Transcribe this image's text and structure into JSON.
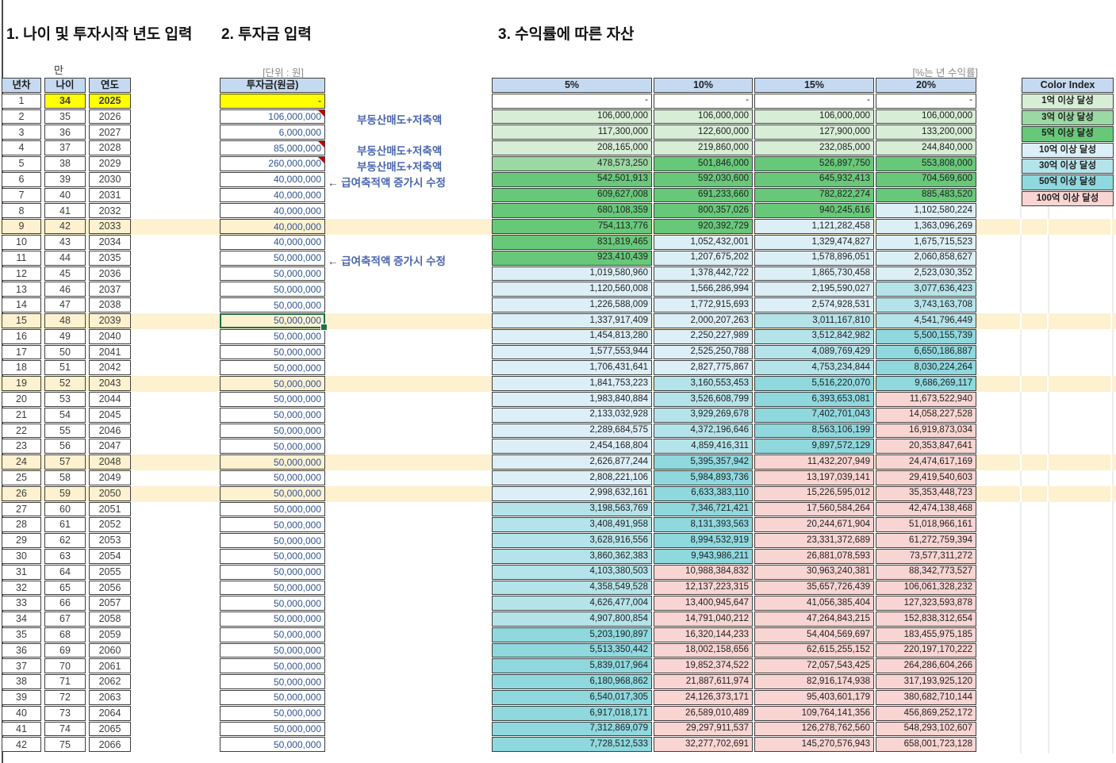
{
  "titles": {
    "section1": "1. 나이 및 투자시작 년도 입력",
    "section2": "2. 투자금 입력",
    "section3": "3. 수익률에 따른 자산"
  },
  "labels": {
    "man": "만",
    "unit": "[단위 : 원]",
    "rate": "[%는 년 수익률]"
  },
  "left_table": {
    "headers": [
      "년차",
      "나이",
      "연도"
    ],
    "rows": [
      [
        1,
        34,
        2025
      ],
      [
        2,
        35,
        2026
      ],
      [
        3,
        36,
        2027
      ],
      [
        4,
        37,
        2028
      ],
      [
        5,
        38,
        2029
      ],
      [
        6,
        39,
        2030
      ],
      [
        7,
        40,
        2031
      ],
      [
        8,
        41,
        2032
      ],
      [
        9,
        42,
        2033
      ],
      [
        10,
        43,
        2034
      ],
      [
        11,
        44,
        2035
      ],
      [
        12,
        45,
        2036
      ],
      [
        13,
        46,
        2037
      ],
      [
        14,
        47,
        2038
      ],
      [
        15,
        48,
        2039
      ],
      [
        16,
        49,
        2040
      ],
      [
        17,
        50,
        2041
      ],
      [
        18,
        51,
        2042
      ],
      [
        19,
        52,
        2043
      ],
      [
        20,
        53,
        2044
      ],
      [
        21,
        54,
        2045
      ],
      [
        22,
        55,
        2046
      ],
      [
        23,
        56,
        2047
      ],
      [
        24,
        57,
        2048
      ],
      [
        25,
        58,
        2049
      ],
      [
        26,
        59,
        2050
      ],
      [
        27,
        60,
        2051
      ],
      [
        28,
        61,
        2052
      ],
      [
        29,
        62,
        2053
      ],
      [
        30,
        63,
        2054
      ],
      [
        31,
        64,
        2055
      ],
      [
        32,
        65,
        2056
      ],
      [
        33,
        66,
        2057
      ],
      [
        34,
        67,
        2058
      ],
      [
        35,
        68,
        2059
      ],
      [
        36,
        69,
        2060
      ],
      [
        37,
        70,
        2061
      ],
      [
        38,
        71,
        2062
      ],
      [
        39,
        72,
        2063
      ],
      [
        40,
        73,
        2064
      ],
      [
        41,
        74,
        2065
      ],
      [
        42,
        75,
        2066
      ]
    ]
  },
  "investment_table": {
    "header": "투자금(원금)",
    "values": [
      "-",
      "106,000,000",
      "6,000,000",
      "85,000,000",
      "260,000,000",
      "40,000,000",
      "40,000,000",
      "40,000,000",
      "40,000,000",
      "40,000,000",
      "50,000,000",
      "50,000,000",
      "50,000,000",
      "50,000,000",
      "50,000,000",
      "50,000,000",
      "50,000,000",
      "50,000,000",
      "50,000,000",
      "50,000,000",
      "50,000,000",
      "50,000,000",
      "50,000,000",
      "50,000,000",
      "50,000,000",
      "50,000,000",
      "50,000,000",
      "50,000,000",
      "50,000,000",
      "50,000,000",
      "50,000,000",
      "50,000,000",
      "50,000,000",
      "50,000,000",
      "50,000,000",
      "50,000,000",
      "50,000,000",
      "50,000,000",
      "50,000,000",
      "50,000,000",
      "50,000,000",
      "50,000,000"
    ],
    "comment_rows": [
      2,
      4,
      5
    ]
  },
  "annotations": [
    {
      "row": 2,
      "arrow": "",
      "text": "부동산매도+저축액"
    },
    {
      "row": 4,
      "arrow": "",
      "text": "부동산매도+저축액"
    },
    {
      "row": 5,
      "arrow": "",
      "text": "부동산매도+저축액"
    },
    {
      "row": 6,
      "arrow": "←",
      "text": "급여축적액 증가시 수정"
    },
    {
      "row": 11,
      "arrow": "←",
      "text": "급여축적액 증가시 수정"
    }
  ],
  "asset_table": {
    "headers": [
      "5%",
      "10%",
      "15%",
      "20%"
    ],
    "rows": [
      [
        "-",
        "-",
        "-",
        "-"
      ],
      [
        "106,000,000",
        "106,000,000",
        "106,000,000",
        "106,000,000"
      ],
      [
        "117,300,000",
        "122,600,000",
        "127,900,000",
        "133,200,000"
      ],
      [
        "208,165,000",
        "219,860,000",
        "232,085,000",
        "244,840,000"
      ],
      [
        "478,573,250",
        "501,846,000",
        "526,897,750",
        "553,808,000"
      ],
      [
        "542,501,913",
        "592,030,600",
        "645,932,413",
        "704,569,600"
      ],
      [
        "609,627,008",
        "691,233,660",
        "782,822,274",
        "885,483,520"
      ],
      [
        "680,108,359",
        "800,357,026",
        "940,245,616",
        "1,102,580,224"
      ],
      [
        "754,113,776",
        "920,392,729",
        "1,121,282,458",
        "1,363,096,269"
      ],
      [
        "831,819,465",
        "1,052,432,001",
        "1,329,474,827",
        "1,675,715,523"
      ],
      [
        "923,410,439",
        "1,207,675,202",
        "1,578,896,051",
        "2,060,858,627"
      ],
      [
        "1,019,580,960",
        "1,378,442,722",
        "1,865,730,458",
        "2,523,030,352"
      ],
      [
        "1,120,560,008",
        "1,566,286,994",
        "2,195,590,027",
        "3,077,636,423"
      ],
      [
        "1,226,588,009",
        "1,772,915,693",
        "2,574,928,531",
        "3,743,163,708"
      ],
      [
        "1,337,917,409",
        "2,000,207,263",
        "3,011,167,810",
        "4,541,796,449"
      ],
      [
        "1,454,813,280",
        "2,250,227,989",
        "3,512,842,982",
        "5,500,155,739"
      ],
      [
        "1,577,553,944",
        "2,525,250,788",
        "4,089,769,429",
        "6,650,186,887"
      ],
      [
        "1,706,431,641",
        "2,827,775,867",
        "4,753,234,844",
        "8,030,224,264"
      ],
      [
        "1,841,753,223",
        "3,160,553,453",
        "5,516,220,070",
        "9,686,269,117"
      ],
      [
        "1,983,840,884",
        "3,526,608,799",
        "6,393,653,081",
        "11,673,522,940"
      ],
      [
        "2,133,032,928",
        "3,929,269,678",
        "7,402,701,043",
        "14,058,227,528"
      ],
      [
        "2,289,684,575",
        "4,372,196,646",
        "8,563,106,199",
        "16,919,873,034"
      ],
      [
        "2,454,168,804",
        "4,859,416,311",
        "9,897,572,129",
        "20,353,847,641"
      ],
      [
        "2,626,877,244",
        "5,395,357,942",
        "11,432,207,949",
        "24,474,617,169"
      ],
      [
        "2,808,221,106",
        "5,984,893,736",
        "13,197,039,141",
        "29,419,540,603"
      ],
      [
        "2,998,632,161",
        "6,633,383,110",
        "15,226,595,012",
        "35,353,448,723"
      ],
      [
        "3,198,563,769",
        "7,346,721,421",
        "17,560,584,264",
        "42,474,138,468"
      ],
      [
        "3,408,491,958",
        "8,131,393,563",
        "20,244,671,904",
        "51,018,966,161"
      ],
      [
        "3,628,916,556",
        "8,994,532,919",
        "23,331,372,689",
        "61,272,759,394"
      ],
      [
        "3,860,362,383",
        "9,943,986,211",
        "26,881,078,593",
        "73,577,311,272"
      ],
      [
        "4,103,380,503",
        "10,988,384,832",
        "30,963,240,381",
        "88,342,773,527"
      ],
      [
        "4,358,549,528",
        "12,137,223,315",
        "35,657,726,439",
        "106,061,328,232"
      ],
      [
        "4,626,477,004",
        "13,400,945,647",
        "41,056,385,404",
        "127,323,593,878"
      ],
      [
        "4,907,800,854",
        "14,791,040,212",
        "47,264,843,215",
        "152,838,312,654"
      ],
      [
        "5,203,190,897",
        "16,320,144,233",
        "54,404,569,697",
        "183,455,975,185"
      ],
      [
        "5,513,350,442",
        "18,002,158,656",
        "62,615,255,152",
        "220,197,170,222"
      ],
      [
        "5,839,017,964",
        "19,852,374,522",
        "72,057,543,425",
        "264,286,604,266"
      ],
      [
        "6,180,968,862",
        "21,887,611,974",
        "82,916,174,938",
        "317,193,925,120"
      ],
      [
        "6,540,017,305",
        "24,126,373,171",
        "95,403,601,179",
        "380,682,710,144"
      ],
      [
        "6,917,018,171",
        "26,589,010,489",
        "109,764,141,356",
        "456,869,252,172"
      ],
      [
        "7,312,869,079",
        "29,297,911,537",
        "126,278,762,560",
        "548,293,102,607"
      ],
      [
        "7,728,512,533",
        "32,277,702,691",
        "145,270,576,943",
        "658,001,723,128"
      ]
    ]
  },
  "legend": {
    "title": "Color Index",
    "items": [
      {
        "label": "1억 이상 달성",
        "min": 100000000,
        "color": "#d7edd6"
      },
      {
        "label": "3억 이상 달성",
        "min": 300000000,
        "color": "#9bd8a3"
      },
      {
        "label": "5억 이상 달성",
        "min": 500000000,
        "color": "#68c87a"
      },
      {
        "label": "10억 이상 달성",
        "min": 1000000000,
        "color": "#ddeff6"
      },
      {
        "label": "30억 이상 달성",
        "min": 3000000000,
        "color": "#b5e3ea"
      },
      {
        "label": "50억 이상 달성",
        "min": 5000000000,
        "color": "#8ed8de"
      },
      {
        "label": "100억 이상 달성",
        "min": 10000000000,
        "color": "#f8d5d2"
      }
    ]
  },
  "highlighted_rows": [
    9,
    15,
    19,
    24,
    26
  ],
  "selection": {
    "row": 15,
    "column": "투자금(원금)",
    "value": "50,000,000"
  },
  "colors": {
    "header_fill": "#c5d9f1",
    "input_yellow": "#ffff00",
    "highlight_band": "#fdf1cf",
    "comment_marker": "#cc0000",
    "selection_green": "#1e7145",
    "investment_font": "#305496",
    "annotation_blue": "#4a66ae"
  }
}
